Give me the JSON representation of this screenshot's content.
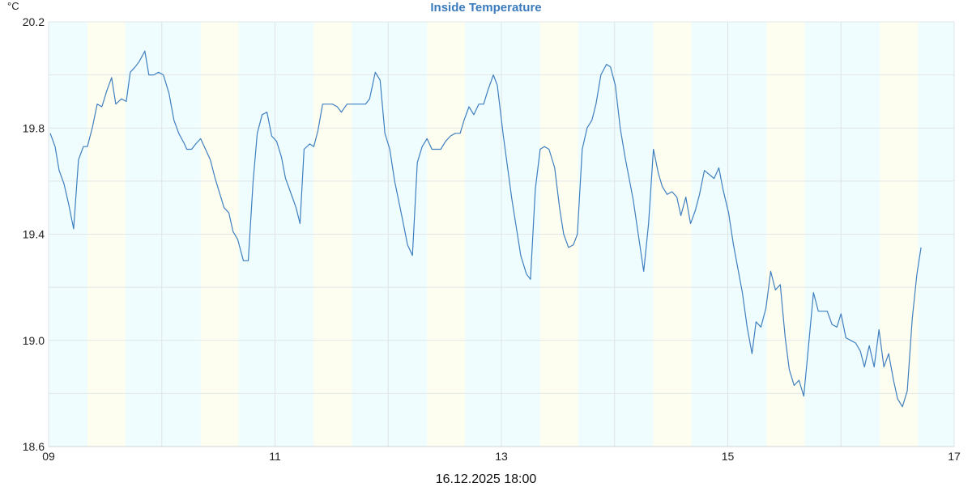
{
  "chart_data": {
    "type": "line",
    "title": "Inside Temperature",
    "ylabel": "°C",
    "xlabel": "16.12.2025 18:00",
    "xlim": [
      9,
      17
    ],
    "ylim": [
      18.6,
      20.2
    ],
    "xticks": [
      9,
      11,
      13,
      15,
      17
    ],
    "xtick_labels": [
      "09",
      "11",
      "13",
      "15",
      "17"
    ],
    "yticks": [
      18.6,
      19.0,
      19.4,
      19.8,
      20.2
    ],
    "ytick_labels": [
      "18.6",
      "19.0",
      "19.4",
      "19.8",
      "20.2"
    ],
    "grid": true,
    "line_color": "#3f7fbf",
    "night_color": "#effdfe",
    "day_color": "#fefef0",
    "day_bands": [
      [
        9.343,
        9.679
      ],
      [
        10.343,
        10.679
      ],
      [
        11.343,
        11.679
      ],
      [
        12.343,
        12.679
      ],
      [
        13.343,
        13.679
      ],
      [
        14.343,
        14.679
      ],
      [
        15.343,
        15.679
      ],
      [
        16.343,
        16.679
      ]
    ],
    "series": [
      {
        "name": "Inside Temperature",
        "x": [
          9.014,
          9.057,
          9.093,
          9.136,
          9.179,
          9.221,
          9.264,
          9.307,
          9.343,
          9.386,
          9.429,
          9.471,
          9.514,
          9.557,
          9.593,
          9.643,
          9.686,
          9.721,
          9.764,
          9.8,
          9.85,
          9.886,
          9.929,
          9.971,
          10.014,
          10.064,
          10.107,
          10.15,
          10.2,
          10.221,
          10.264,
          10.3,
          10.343,
          10.386,
          10.429,
          10.471,
          10.521,
          10.55,
          10.593,
          10.629,
          10.671,
          10.721,
          10.764,
          10.807,
          10.843,
          10.886,
          10.929,
          10.971,
          11.014,
          11.057,
          11.093,
          11.136,
          11.186,
          11.221,
          11.257,
          11.307,
          11.343,
          11.379,
          11.421,
          11.507,
          11.55,
          11.586,
          11.636,
          11.8,
          11.836,
          11.886,
          11.929,
          11.971,
          12.014,
          12.057,
          12.129,
          12.171,
          12.214,
          12.257,
          12.3,
          12.343,
          12.386,
          12.464,
          12.507,
          12.55,
          12.593,
          12.636,
          12.671,
          12.714,
          12.757,
          12.8,
          12.843,
          12.879,
          12.929,
          12.964,
          13.014,
          13.093,
          13.171,
          13.221,
          13.257,
          13.3,
          13.343,
          13.379,
          13.421,
          13.471,
          13.514,
          13.55,
          13.593,
          13.636,
          13.671,
          13.714,
          13.757,
          13.8,
          13.836,
          13.879,
          13.929,
          13.964,
          14.007,
          14.05,
          14.093,
          14.164,
          14.257,
          14.3,
          14.343,
          14.386,
          14.421,
          14.464,
          14.507,
          14.55,
          14.586,
          14.629,
          14.671,
          14.714,
          14.75,
          14.793,
          14.879,
          14.921,
          14.957,
          15.007,
          15.05,
          15.129,
          15.171,
          15.214,
          15.25,
          15.293,
          15.336,
          15.379,
          15.421,
          15.464,
          15.507,
          15.543,
          15.586,
          15.629,
          15.671,
          15.707,
          15.757,
          15.8,
          15.843,
          15.879,
          15.921,
          15.964,
          16.0,
          16.043,
          16.086,
          16.129,
          16.171,
          16.207,
          16.25,
          16.293,
          16.336,
          16.379,
          16.421,
          16.464,
          16.5,
          16.543,
          16.586,
          16.629,
          16.671,
          16.707
        ],
        "values": [
          19.78,
          19.73,
          19.64,
          19.59,
          19.51,
          19.42,
          19.68,
          19.73,
          19.73,
          19.8,
          19.89,
          19.88,
          19.94,
          19.99,
          19.89,
          19.91,
          19.9,
          20.01,
          20.03,
          20.05,
          20.09,
          20.0,
          20.0,
          20.01,
          20.0,
          19.93,
          19.83,
          19.78,
          19.74,
          19.72,
          19.72,
          19.74,
          19.76,
          19.72,
          19.68,
          19.61,
          19.54,
          19.5,
          19.48,
          19.41,
          19.38,
          19.3,
          19.3,
          19.6,
          19.78,
          19.85,
          19.86,
          19.77,
          19.75,
          19.69,
          19.61,
          19.56,
          19.5,
          19.44,
          19.72,
          19.74,
          19.73,
          19.79,
          19.89,
          19.89,
          19.88,
          19.86,
          19.89,
          19.89,
          19.91,
          20.01,
          19.98,
          19.78,
          19.72,
          19.6,
          19.45,
          19.36,
          19.32,
          19.67,
          19.73,
          19.76,
          19.72,
          19.72,
          19.75,
          19.77,
          19.78,
          19.78,
          19.83,
          19.88,
          19.85,
          19.89,
          19.89,
          19.94,
          20.0,
          19.96,
          19.78,
          19.53,
          19.32,
          19.25,
          19.23,
          19.57,
          19.72,
          19.73,
          19.72,
          19.65,
          19.5,
          19.4,
          19.35,
          19.36,
          19.4,
          19.72,
          19.8,
          19.83,
          19.89,
          20.0,
          20.04,
          20.03,
          19.96,
          19.8,
          19.69,
          19.53,
          19.26,
          19.44,
          19.72,
          19.63,
          19.58,
          19.55,
          19.56,
          19.54,
          19.47,
          19.54,
          19.44,
          19.49,
          19.55,
          19.64,
          19.61,
          19.65,
          19.57,
          19.48,
          19.36,
          19.18,
          19.05,
          18.95,
          19.07,
          19.05,
          19.12,
          19.26,
          19.19,
          19.21,
          19.01,
          18.89,
          18.83,
          18.85,
          18.79,
          18.95,
          19.18,
          19.11,
          19.11,
          19.11,
          19.06,
          19.05,
          19.1,
          19.01,
          19.0,
          18.99,
          18.96,
          18.9,
          18.98,
          18.9,
          19.04,
          18.9,
          18.95,
          18.85,
          18.78,
          18.75,
          18.81,
          19.08,
          19.25,
          19.35
        ]
      }
    ]
  }
}
